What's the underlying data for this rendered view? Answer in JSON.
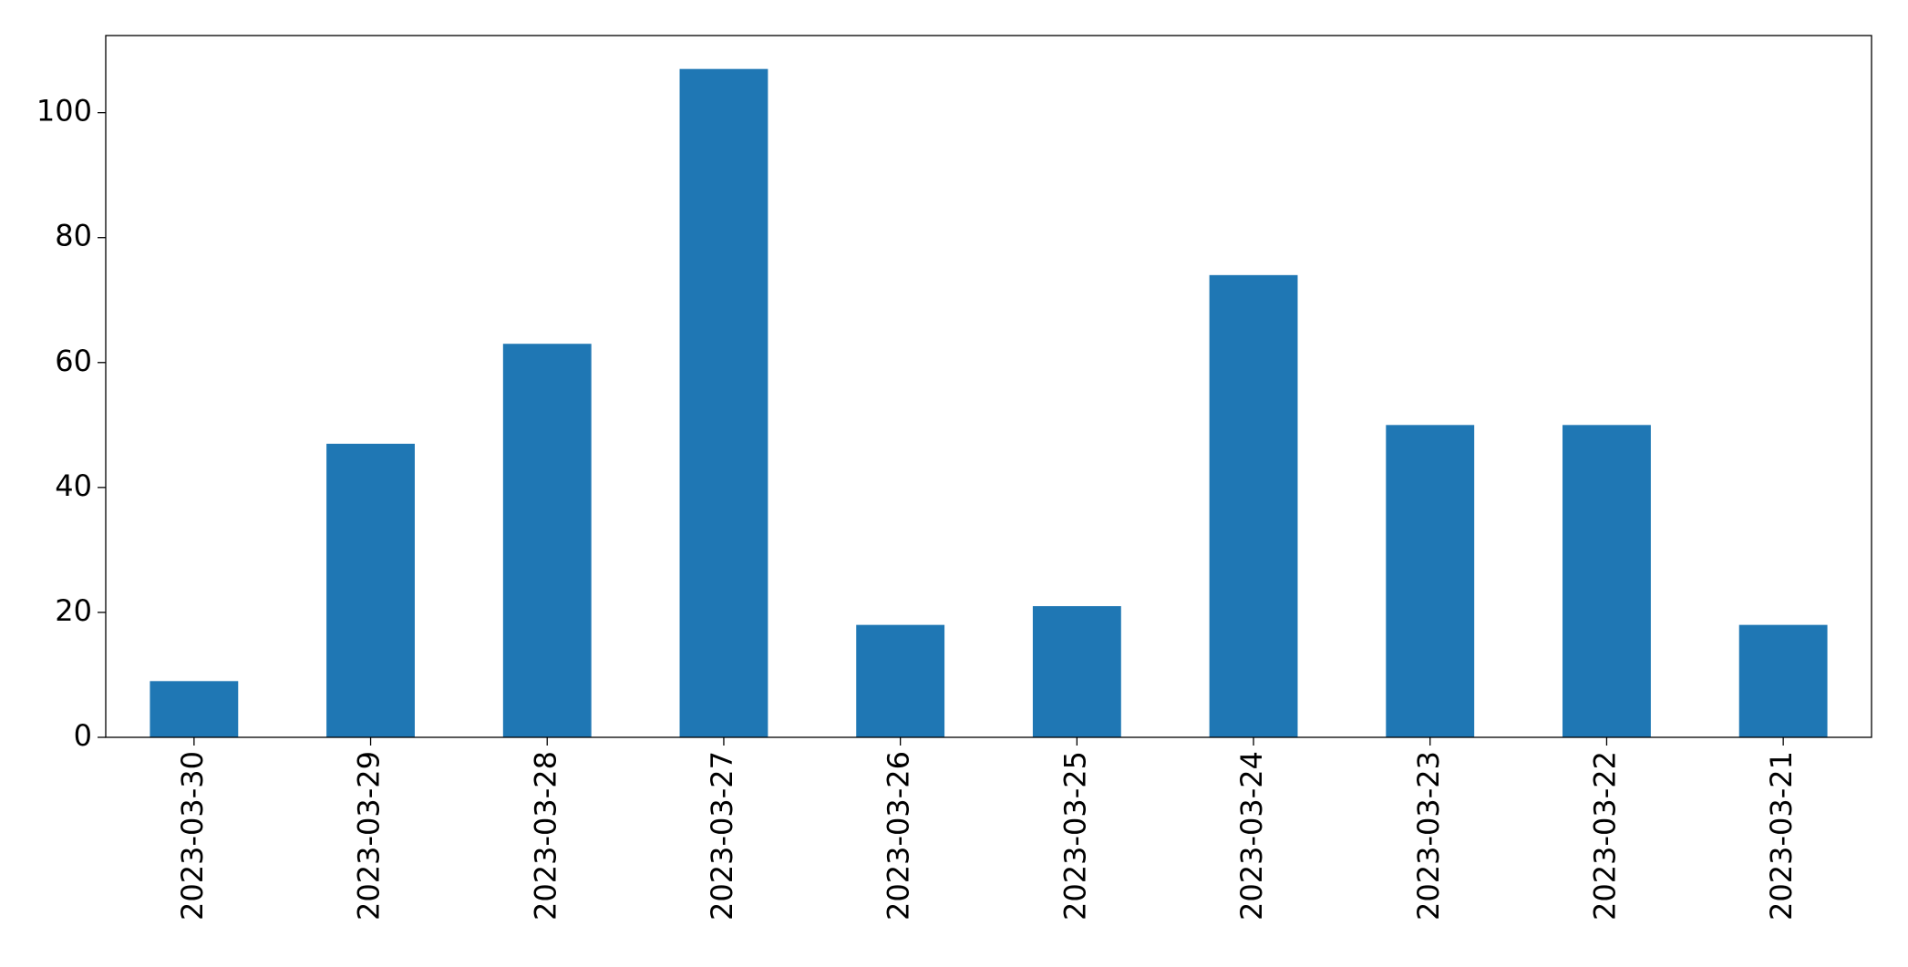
{
  "chart_data": {
    "type": "bar",
    "categories": [
      "2023-03-30",
      "2023-03-29",
      "2023-03-28",
      "2023-03-27",
      "2023-03-26",
      "2023-03-25",
      "2023-03-24",
      "2023-03-23",
      "2023-03-22",
      "2023-03-21"
    ],
    "values": [
      9,
      47,
      63,
      107,
      18,
      21,
      74,
      50,
      50,
      18
    ],
    "color": "#1f77b4",
    "ylim": [
      0,
      112.35
    ],
    "yticks": [
      0,
      20,
      40,
      60,
      80,
      100
    ],
    "grid": false
  }
}
